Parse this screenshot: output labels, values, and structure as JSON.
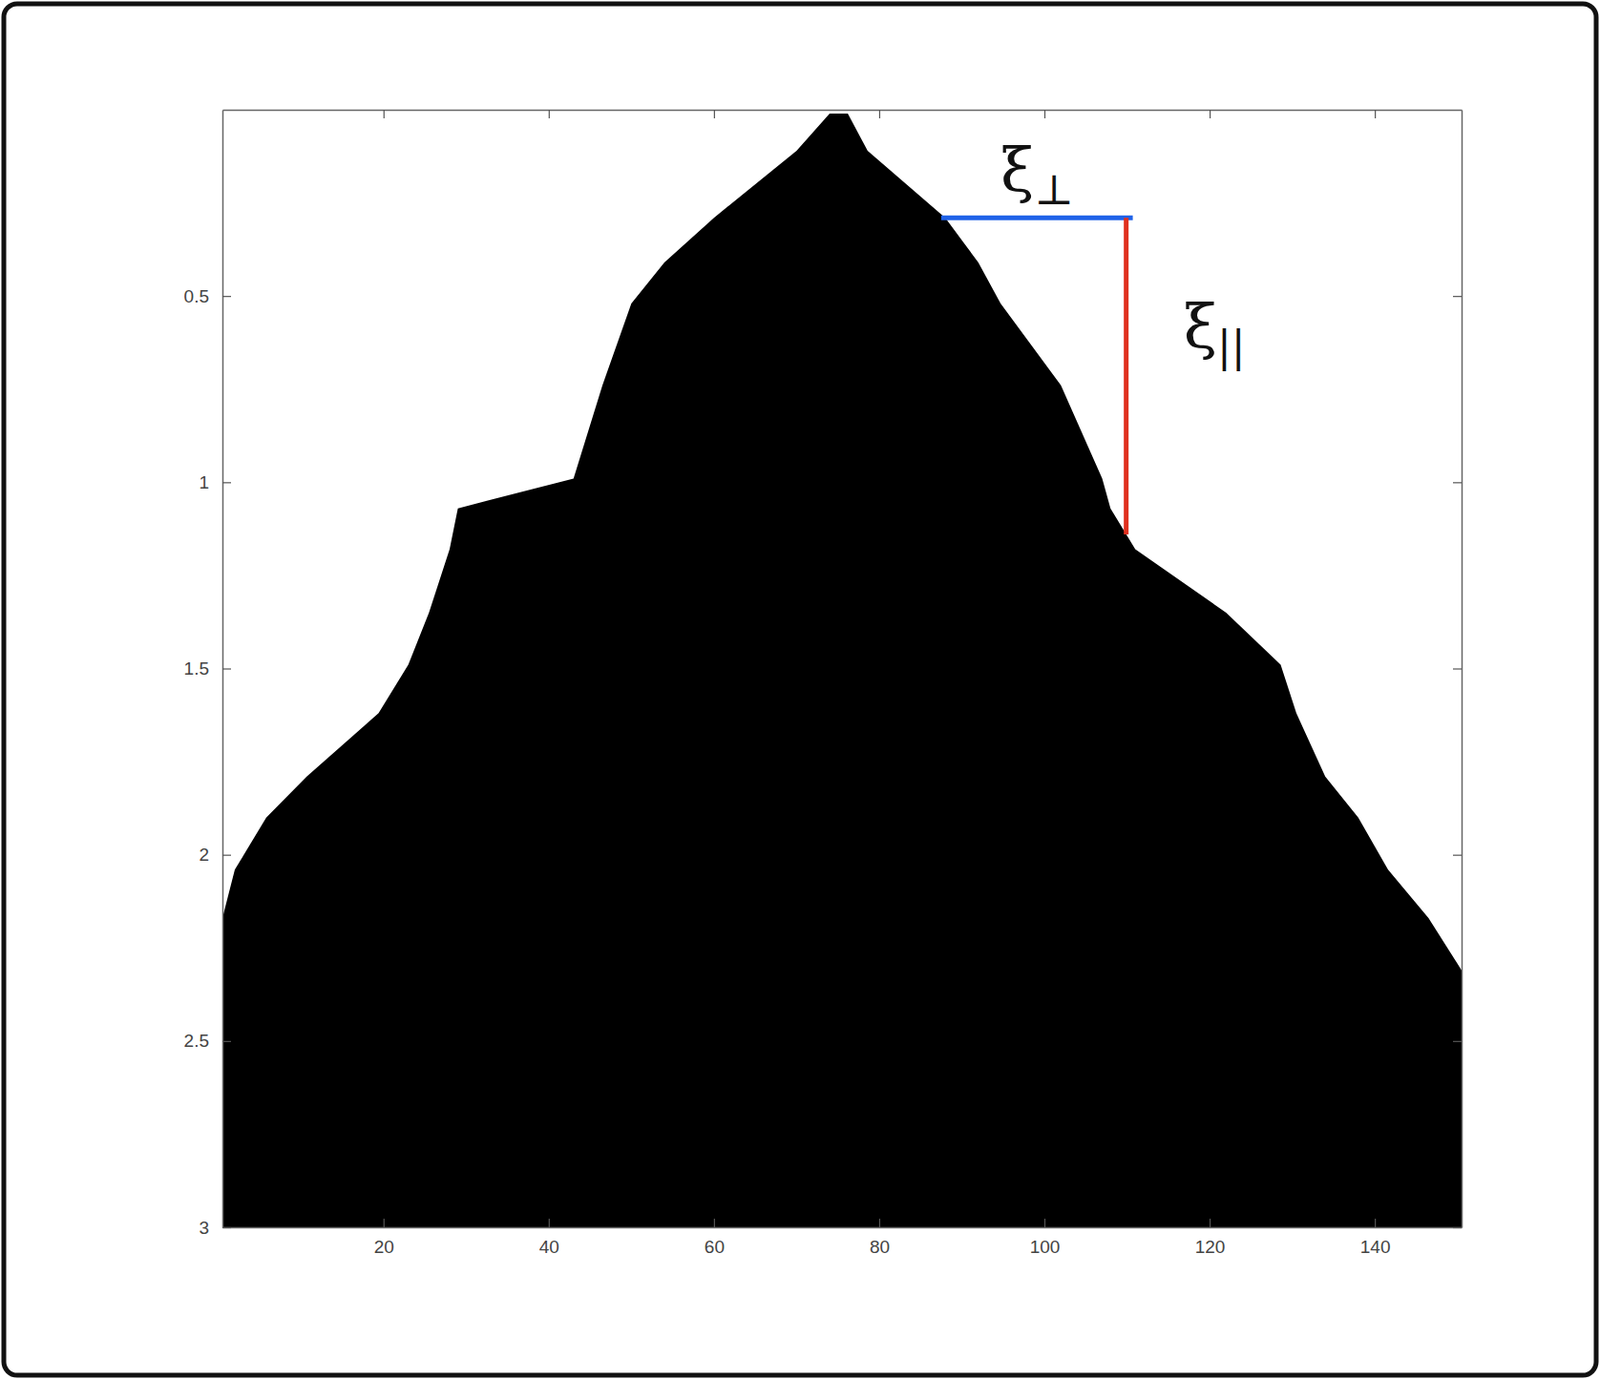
{
  "chart_data": {
    "type": "area",
    "color": "#000000",
    "y": [
      0.01,
      0.11,
      0.29,
      0.41,
      0.52,
      0.74,
      0.99,
      1.07,
      1.18,
      1.35,
      1.49,
      1.62,
      1.79,
      1.9,
      2.04,
      2.17,
      2.31,
      3.0
    ],
    "x_left": [
      74,
      70,
      60,
      54,
      50,
      46.5,
      43,
      29,
      28,
      25.5,
      23,
      19.4,
      10.7,
      5.8,
      2,
      0.5,
      0.5,
      0.5
    ],
    "x_right": [
      76.2,
      78.6,
      88,
      92,
      94.7,
      102,
      107,
      108,
      111,
      122,
      128.6,
      130.5,
      134,
      138,
      141.6,
      146.5,
      150.5,
      150.5
    ],
    "xlim": [
      0.5,
      150.5
    ],
    "ylim": [
      0,
      3
    ],
    "xticks": [
      20,
      40,
      60,
      80,
      100,
      120,
      140
    ],
    "yticks": [
      0.5,
      1,
      1.5,
      2,
      2.5,
      3
    ],
    "annotations": [
      {
        "text": "ξ",
        "subscript": "⊥",
        "x": [
          87.5,
          110.7
        ],
        "y": [
          0.29,
          0.29
        ],
        "color": "#1f62e8"
      },
      {
        "text": "ξ",
        "subscript": "||",
        "x": [
          109.9,
          109.9
        ],
        "y": [
          0.29,
          1.14
        ],
        "color": "#e0301e"
      }
    ]
  }
}
